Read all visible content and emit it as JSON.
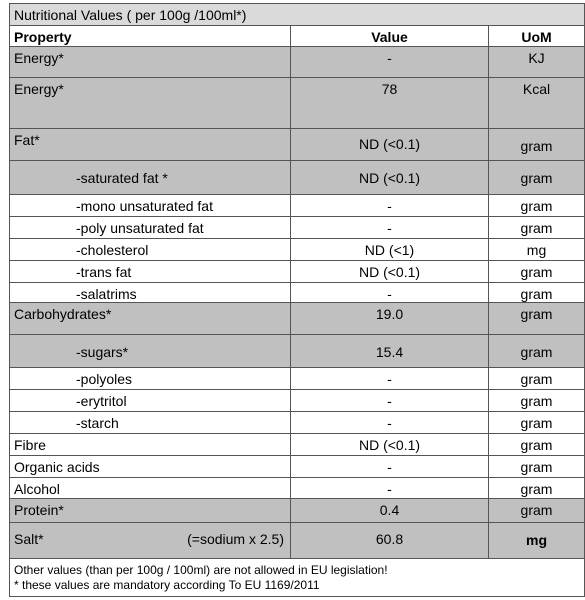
{
  "table": {
    "title": "Nutritional Values ( per 100g /100ml*)",
    "header": [
      "Property",
      "Value",
      "UoM"
    ],
    "rows": [
      {
        "property": "Energy*",
        "value": "-",
        "uom": "KJ"
      },
      {
        "property": "Energy*",
        "value": "78",
        "uom": "Kcal"
      },
      {
        "property": "Fat*",
        "value": "ND (<0.1)",
        "uom": "gram"
      },
      {
        "property": "-saturated fat *",
        "value": "ND (<0.1)",
        "uom": "gram"
      },
      {
        "property": "-mono unsaturated fat",
        "value": "-",
        "uom": "gram"
      },
      {
        "property": "-poly unsaturated fat",
        "value": "-",
        "uom": "gram"
      },
      {
        "property": "-cholesterol",
        "value": "ND (<1)",
        "uom": "mg"
      },
      {
        "property": "-trans fat",
        "value": "ND (<0.1)",
        "uom": "gram"
      },
      {
        "property": "-salatrims",
        "value": "-",
        "uom": "gram"
      },
      {
        "property": "Carbohydrates*",
        "value": "19.0",
        "uom": "gram"
      },
      {
        "property": "-sugars*",
        "value": "15.4",
        "uom": "gram"
      },
      {
        "property": "-polyoles",
        "value": "-",
        "uom": "gram"
      },
      {
        "property": "-erytritol",
        "value": "-",
        "uom": "gram"
      },
      {
        "property": "-starch",
        "value": "-",
        "uom": "gram"
      },
      {
        "property": "Fibre",
        "value": "ND (<0.1)",
        "uom": "gram"
      },
      {
        "property": "Organic acids",
        "value": "-",
        "uom": "gram"
      },
      {
        "property": "Alcohol",
        "value": "-",
        "uom": "gram"
      },
      {
        "property": "Protein*",
        "value": "0.4",
        "uom": "gram"
      },
      {
        "property": "Salt*",
        "note": "(=sodium x 2.5)",
        "value": "60.8",
        "uom": "mg"
      }
    ],
    "footer": [
      "Other values  (than  per 100g / 100ml) are not allowed in EU legislation!",
      "* these values are mandatory according To EU 1169/2011"
    ]
  }
}
